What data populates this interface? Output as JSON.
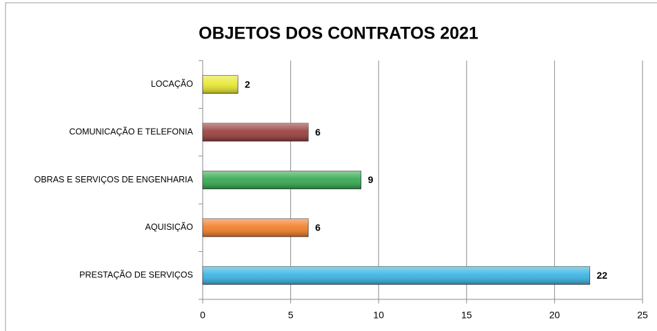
{
  "chart_data": {
    "type": "bar",
    "orientation": "horizontal",
    "title": "OBJETOS DOS CONTRATOS 2021",
    "categories": [
      "LOCAÇÃO",
      "COMUNICAÇÃO E TELEFONIA",
      "OBRAS E SERVIÇOS DE ENGENHARIA",
      "AQUISIÇÃO",
      "PRESTAÇÃO DE SERVIÇOS"
    ],
    "values": [
      2,
      6,
      9,
      6,
      22
    ],
    "colors": [
      "#e8e82c",
      "#973a38",
      "#2fa84c",
      "#f27b22",
      "#35b2e2"
    ],
    "xlim": [
      0,
      25
    ],
    "xticks": [
      0,
      5,
      10,
      15,
      20,
      25
    ],
    "grid": true
  }
}
